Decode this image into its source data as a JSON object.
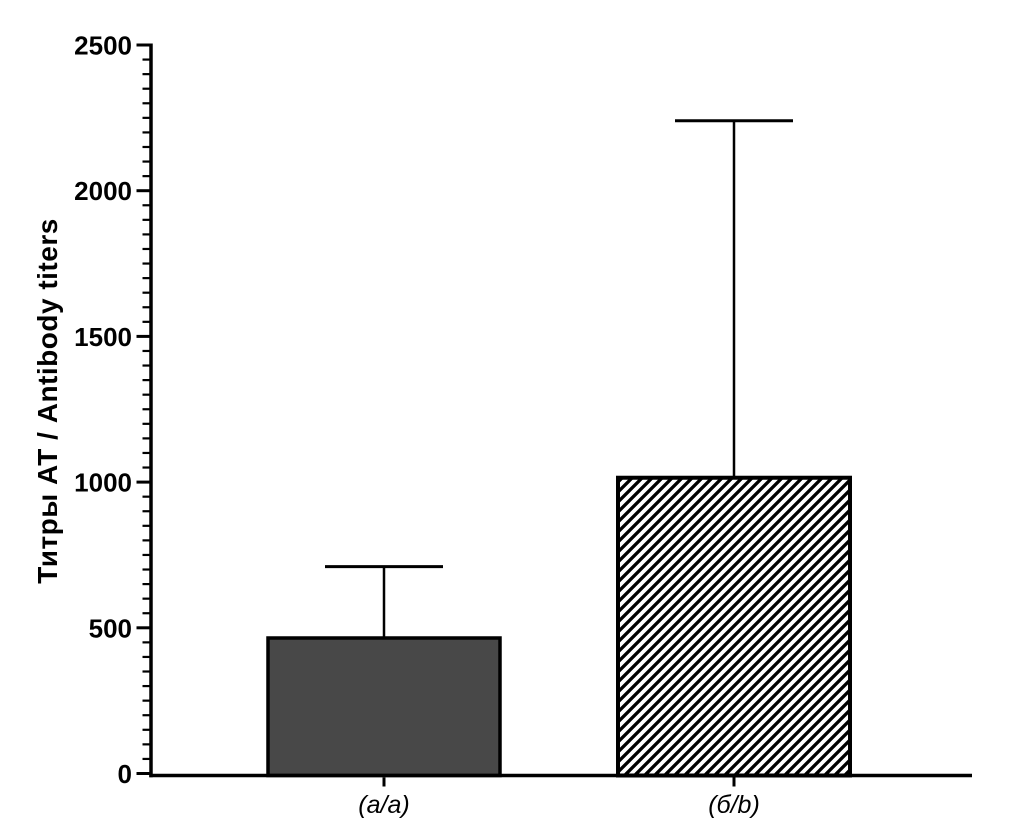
{
  "figure": {
    "background": "#ffffff"
  },
  "chart_data": {
    "type": "bar",
    "title": "",
    "xlabel": "",
    "ylabel": "Титры АТ / Antibody titers",
    "categories": [
      "(a/a)",
      "(б/b)"
    ],
    "series": [
      {
        "name": "Antibody titers",
        "values": [
          465,
          1015
        ],
        "error_plus": [
          245,
          1225
        ],
        "error_bar_tops": [
          710,
          2240
        ]
      }
    ],
    "ylim": [
      0,
      2500
    ],
    "ytick_interval": 500,
    "yminor_tick_interval": 50,
    "ytick_labels": [
      "0",
      "500",
      "1000",
      "1500",
      "2000",
      "2500"
    ],
    "grid": false,
    "legend": "none",
    "bar_styles": [
      {
        "category": "(a/a)",
        "fill": "#484848",
        "pattern": "solid",
        "stroke": "#000000"
      },
      {
        "category": "(б/b)",
        "fill": "#ffffff",
        "pattern": "diagonal-hatch-forward",
        "stroke": "#000000"
      }
    ],
    "colors": {
      "axis": "#000000",
      "text": "#000000",
      "error_bars": "#000000",
      "background": "#ffffff"
    }
  }
}
